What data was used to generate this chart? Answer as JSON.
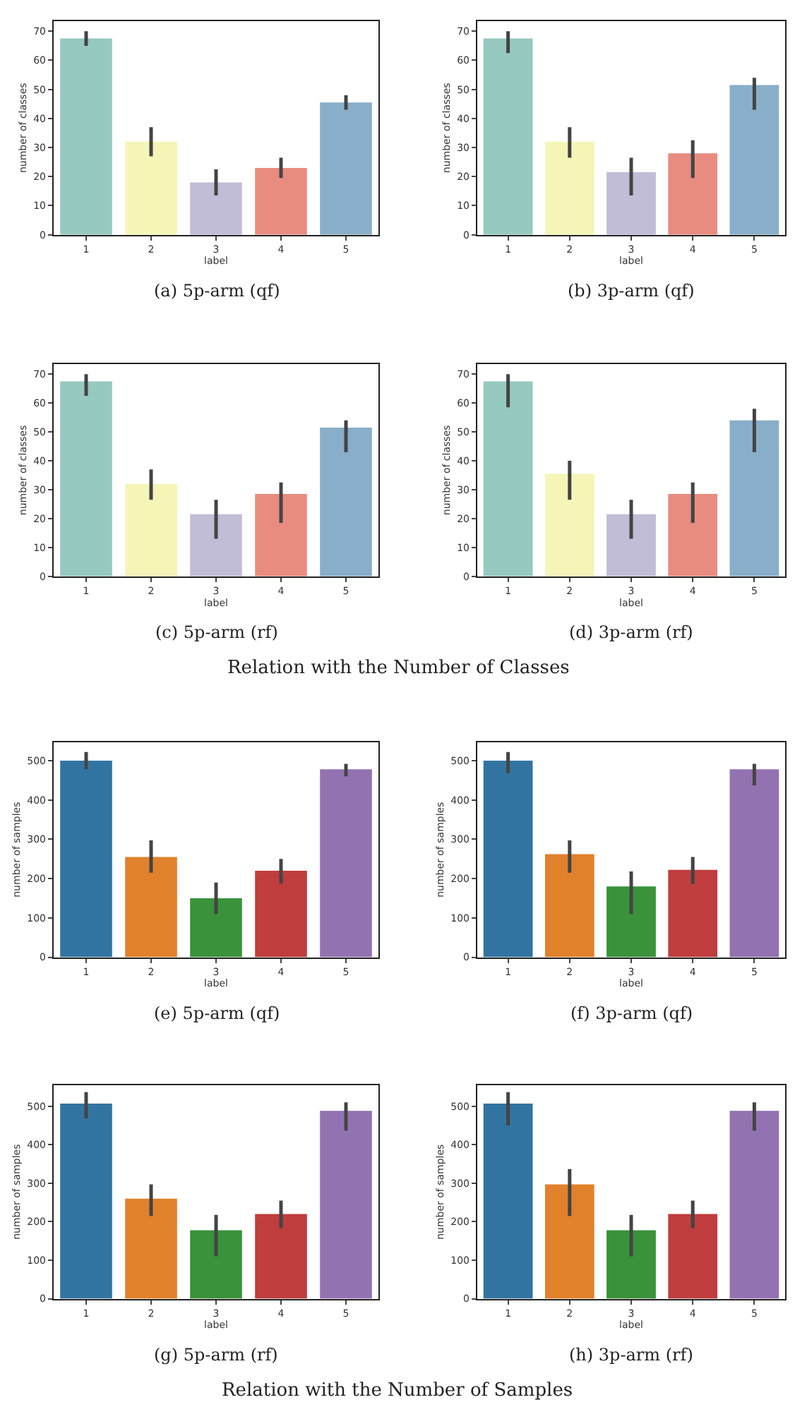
{
  "chart_data": [
    {
      "type": "bar",
      "title": "(a) 5p-arm (qf)",
      "xlabel": "label",
      "ylabel": "number of classes",
      "categories": [
        "1",
        "2",
        "3",
        "4",
        "5"
      ],
      "values": [
        67.5,
        32,
        18,
        23,
        45.5
      ],
      "errors": [
        [
          65,
          70
        ],
        [
          27,
          37
        ],
        [
          13.5,
          22.5
        ],
        [
          19.5,
          26.5
        ],
        [
          43,
          48
        ]
      ],
      "colors": [
        "#96c9c0",
        "#f5f5b8",
        "#c1bdd6",
        "#e88c80",
        "#89aec9"
      ],
      "ylim": [
        0,
        73.5
      ],
      "yticks": [
        0,
        10,
        20,
        30,
        40,
        50,
        60,
        70
      ],
      "grid": false,
      "legend": false
    },
    {
      "type": "bar",
      "title": "(b) 3p-arm (qf)",
      "xlabel": "label",
      "ylabel": "number of classes",
      "categories": [
        "1",
        "2",
        "3",
        "4",
        "5"
      ],
      "values": [
        67.5,
        32,
        21.5,
        28,
        51.5
      ],
      "errors": [
        [
          62.5,
          70
        ],
        [
          26.5,
          37
        ],
        [
          13.5,
          26.5
        ],
        [
          19.5,
          32.5
        ],
        [
          43,
          54
        ]
      ],
      "colors": [
        "#96c9c0",
        "#f5f5b8",
        "#c1bdd6",
        "#e88c80",
        "#89aec9"
      ],
      "ylim": [
        0,
        73.5
      ],
      "yticks": [
        0,
        10,
        20,
        30,
        40,
        50,
        60,
        70
      ],
      "grid": false,
      "legend": false
    },
    {
      "type": "bar",
      "title": "(c) 5p-arm (rf)",
      "xlabel": "label",
      "ylabel": "number of classes",
      "categories": [
        "1",
        "2",
        "3",
        "4",
        "5"
      ],
      "values": [
        67.5,
        32,
        21.5,
        28.5,
        51.5
      ],
      "errors": [
        [
          62.5,
          70
        ],
        [
          26.5,
          37
        ],
        [
          13,
          26.5
        ],
        [
          18.5,
          32.5
        ],
        [
          43,
          54
        ]
      ],
      "colors": [
        "#96c9c0",
        "#f5f5b8",
        "#c1bdd6",
        "#e88c80",
        "#89aec9"
      ],
      "ylim": [
        0,
        73.5
      ],
      "yticks": [
        0,
        10,
        20,
        30,
        40,
        50,
        60,
        70
      ],
      "grid": false,
      "legend": false,
      "annotations": [
        "Relation with the Number of Classes"
      ]
    },
    {
      "type": "bar",
      "title": "(d) 3p-arm (rf)",
      "xlabel": "label",
      "ylabel": "number of classes",
      "categories": [
        "1",
        "2",
        "3",
        "4",
        "5"
      ],
      "values": [
        67.5,
        35.5,
        21.5,
        28.5,
        54
      ],
      "errors": [
        [
          58.5,
          70
        ],
        [
          26.5,
          40
        ],
        [
          13,
          26.5
        ],
        [
          18.5,
          32.5
        ],
        [
          43,
          58
        ]
      ],
      "colors": [
        "#96c9c0",
        "#f5f5b8",
        "#c1bdd6",
        "#e88c80",
        "#89aec9"
      ],
      "ylim": [
        0,
        73.5
      ],
      "yticks": [
        0,
        10,
        20,
        30,
        40,
        50,
        60,
        70
      ],
      "grid": false,
      "legend": false
    },
    {
      "type": "bar",
      "title": "(e) 5p-arm (qf)",
      "xlabel": "label",
      "ylabel": "number of samples",
      "categories": [
        "1",
        "2",
        "3",
        "4",
        "5"
      ],
      "values": [
        500,
        255,
        150,
        220,
        478
      ],
      "errors": [
        [
          478,
          522
        ],
        [
          215,
          297
        ],
        [
          110,
          190
        ],
        [
          187,
          250
        ],
        [
          460,
          492
        ]
      ],
      "colors": [
        "#3274a1",
        "#e1812c",
        "#3a923a",
        "#c03d3e",
        "#9372b2"
      ],
      "ylim": [
        0,
        547
      ],
      "yticks": [
        0,
        100,
        200,
        300,
        400,
        500
      ],
      "grid": false,
      "legend": false
    },
    {
      "type": "bar",
      "title": "(f) 3p-arm (qf)",
      "xlabel": "label",
      "ylabel": "number of samples",
      "categories": [
        "1",
        "2",
        "3",
        "4",
        "5"
      ],
      "values": [
        500,
        262,
        180,
        222,
        478
      ],
      "errors": [
        [
          468,
          522
        ],
        [
          215,
          297
        ],
        [
          110,
          218
        ],
        [
          186,
          255
        ],
        [
          437,
          492
        ]
      ],
      "colors": [
        "#3274a1",
        "#e1812c",
        "#3a923a",
        "#c03d3e",
        "#9372b2"
      ],
      "ylim": [
        0,
        547
      ],
      "yticks": [
        0,
        100,
        200,
        300,
        400,
        500
      ],
      "grid": false,
      "legend": false
    },
    {
      "type": "bar",
      "title": "(g) 5p-arm (rf)",
      "xlabel": "label",
      "ylabel": "number of samples",
      "categories": [
        "1",
        "2",
        "3",
        "4",
        "5"
      ],
      "values": [
        507,
        260,
        178,
        220,
        488
      ],
      "errors": [
        [
          468,
          537
        ],
        [
          215,
          297
        ],
        [
          110,
          218
        ],
        [
          183,
          255
        ],
        [
          437,
          510
        ]
      ],
      "colors": [
        "#3274a1",
        "#e1812c",
        "#3a923a",
        "#c03d3e",
        "#9372b2"
      ],
      "ylim": [
        0,
        555
      ],
      "yticks": [
        0,
        100,
        200,
        300,
        400,
        500
      ],
      "grid": false,
      "legend": false,
      "annotations": [
        "Relation with the Number of Samples"
      ]
    },
    {
      "type": "bar",
      "title": "(h) 3p-arm (rf)",
      "xlabel": "label",
      "ylabel": "number of samples",
      "categories": [
        "1",
        "2",
        "3",
        "4",
        "5"
      ],
      "values": [
        507,
        297,
        178,
        220,
        488
      ],
      "errors": [
        [
          450,
          537
        ],
        [
          215,
          337
        ],
        [
          110,
          218
        ],
        [
          183,
          255
        ],
        [
          437,
          510
        ]
      ],
      "colors": [
        "#3274a1",
        "#e1812c",
        "#3a923a",
        "#c03d3e",
        "#9372b2"
      ],
      "ylim": [
        0,
        555
      ],
      "yticks": [
        0,
        100,
        200,
        300,
        400,
        500
      ],
      "grid": false,
      "legend": false
    }
  ]
}
